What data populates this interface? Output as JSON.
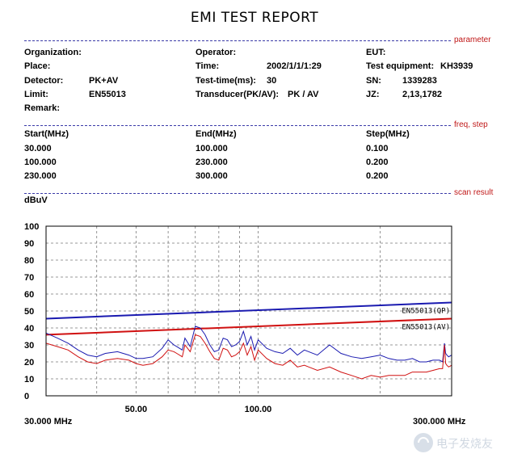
{
  "title": "EMI TEST REPORT",
  "sections": {
    "parameter": "parameter",
    "freq_step": "freq, step",
    "scan_result": "scan result"
  },
  "params": {
    "organization_label": "Organization:",
    "operator_label": "Operator:",
    "eut_label": "EUT:",
    "place_label": "Place:",
    "time_label": "Time:",
    "time_value": "2002/1/1/1:29",
    "test_equipment_label": "Test equipment:",
    "test_equipment_value": "KH3939",
    "detector_label": "Detector:",
    "detector_value": "PK+AV",
    "test_time_label": "Test-time(ms):",
    "test_time_value": "30",
    "sn_label": "SN:",
    "sn_value": "1339283",
    "limit_label": "Limit:",
    "limit_value": "EN55013",
    "transducer_label": "Transducer(PK/AV):",
    "transducer_value": "PK  /  AV",
    "jz_label": "JZ:",
    "jz_value": "2,13,1782",
    "remark_label": "Remark:"
  },
  "freq_table": {
    "headers": [
      "Start(MHz)",
      "End(MHz)",
      "Step(MHz)"
    ],
    "rows": [
      [
        "30.000",
        "100.000",
        "0.100"
      ],
      [
        "100.000",
        "230.000",
        "0.200"
      ],
      [
        "230.000",
        "300.000",
        "0.200"
      ]
    ]
  },
  "colors": {
    "qp": "#1a1ab0",
    "av": "#d01010",
    "grid": "#7a7a7a"
  },
  "chart_data": {
    "type": "line",
    "ylabel": "dBuV",
    "y_ticks": [
      "100",
      "90",
      "80",
      "70",
      "60",
      "50",
      "40",
      "30",
      "20",
      "10",
      "0"
    ],
    "ylim": [
      0,
      100
    ],
    "xlim": [
      30,
      300
    ],
    "x_scale": "log",
    "x_tick_labels": [
      "50.00",
      "100.00"
    ],
    "x_tick_values": [
      50,
      100
    ],
    "x_start_label": "30.000 MHz",
    "x_end_label": "300.000 MHz",
    "grid": true,
    "limit_series": [
      {
        "name": "EN55013(QP)",
        "x": [
          30,
          300
        ],
        "y": [
          45.5,
          55
        ]
      },
      {
        "name": "EN55013(AV)",
        "x": [
          30,
          300
        ],
        "y": [
          36,
          45.5
        ]
      }
    ],
    "series": [
      {
        "x": [
          30,
          32,
          34,
          36,
          38,
          40,
          42,
          45,
          48,
          50,
          52,
          55,
          58,
          60,
          62,
          63,
          65,
          66,
          68,
          70,
          72,
          74,
          76,
          78,
          80,
          82,
          84,
          86,
          88,
          90,
          92,
          94,
          96,
          98,
          100,
          105,
          110,
          115,
          120,
          125,
          130,
          140,
          150,
          160,
          170,
          180,
          190,
          200,
          210,
          220,
          230,
          240,
          250,
          260,
          270,
          280,
          285,
          288,
          290,
          292,
          295,
          300
        ],
        "y": [
          37,
          34,
          31,
          27,
          24,
          23,
          25,
          26,
          24,
          22,
          22,
          23,
          28,
          33,
          30,
          29,
          27,
          34,
          29,
          41,
          40,
          36,
          30,
          26,
          27,
          34,
          33,
          29,
          30,
          32,
          38,
          30,
          35,
          27,
          33,
          28,
          26,
          25,
          28,
          24,
          27,
          24,
          30,
          25,
          23,
          22,
          23,
          24,
          22,
          21,
          21,
          22,
          20,
          20,
          21,
          21,
          20,
          31,
          25,
          24,
          23,
          24
        ]
      },
      {
        "x": [
          30,
          32,
          34,
          36,
          38,
          40,
          42,
          45,
          48,
          50,
          52,
          55,
          58,
          60,
          62,
          63,
          65,
          66,
          68,
          70,
          72,
          74,
          76,
          78,
          80,
          82,
          84,
          86,
          88,
          90,
          92,
          94,
          96,
          98,
          100,
          105,
          110,
          115,
          120,
          125,
          130,
          140,
          150,
          160,
          170,
          180,
          190,
          200,
          210,
          220,
          230,
          240,
          250,
          260,
          270,
          280,
          285,
          288,
          290,
          292,
          295,
          300
        ],
        "y": [
          31,
          29,
          27,
          23,
          20,
          19,
          21,
          22,
          21,
          19,
          18,
          19,
          23,
          27,
          26,
          25,
          23,
          30,
          26,
          36,
          35,
          31,
          26,
          22,
          21,
          28,
          27,
          23,
          24,
          26,
          31,
          24,
          29,
          21,
          27,
          22,
          19,
          18,
          21,
          17,
          18,
          15,
          17,
          14,
          12,
          10,
          12,
          11,
          12,
          12,
          12,
          14,
          14,
          14,
          15,
          16,
          16,
          30,
          19,
          18,
          17,
          18
        ]
      }
    ]
  },
  "watermark": {
    "text": "电子发烧友"
  }
}
